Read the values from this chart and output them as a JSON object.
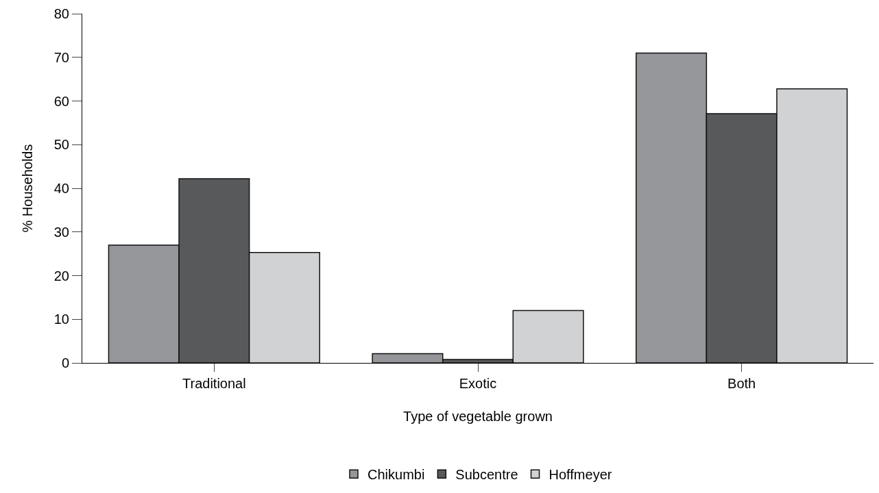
{
  "chart_data": {
    "type": "bar",
    "xlabel": "Type of vegetable grown",
    "ylabel": "% Households",
    "categories": [
      "Traditional",
      "Exotic",
      "Both"
    ],
    "series": [
      {
        "name": "Chikumbi",
        "color": "#95969a",
        "values": [
          27,
          2.1,
          71
        ]
      },
      {
        "name": "Subcentre",
        "color": "#58595b",
        "values": [
          42.2,
          0.8,
          57.1
        ]
      },
      {
        "name": "Hoffmeyer",
        "color": "#d1d2d4",
        "values": [
          25.3,
          12,
          62.8
        ]
      }
    ],
    "ylim": [
      0,
      80
    ],
    "yticks": [
      0,
      10,
      20,
      30,
      40,
      50,
      60,
      70,
      80
    ],
    "grid": false,
    "legend": "bottom"
  }
}
